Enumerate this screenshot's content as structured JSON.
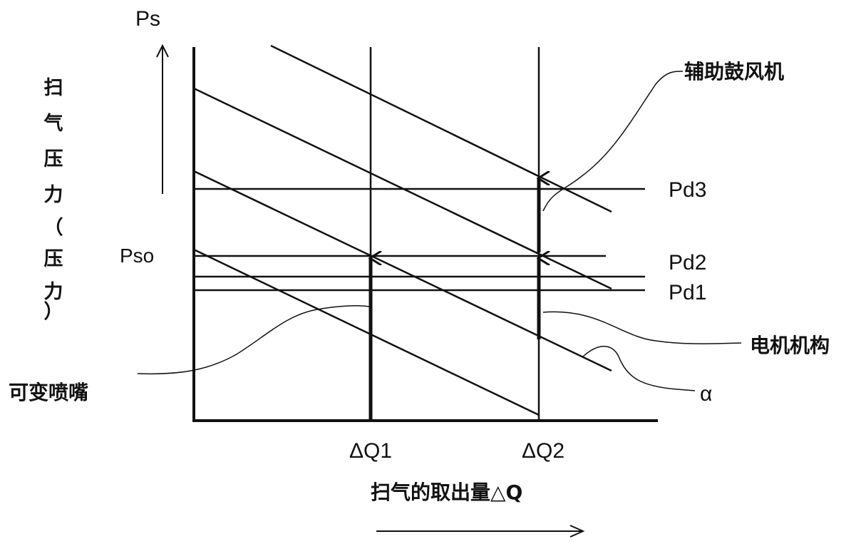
{
  "y_axis": {
    "symbol": "Ps",
    "label_chars": [
      "扫",
      "气",
      "压",
      "力",
      "（",
      "压",
      "力",
      "）"
    ],
    "reference": "Pso"
  },
  "x_axis": {
    "label": "扫气的取出量△Q",
    "ticks": [
      "ΔQ1",
      "ΔQ2"
    ]
  },
  "levels": [
    "Pd3",
    "Pd2",
    "Pd1"
  ],
  "callouts": {
    "auxiliary_blower": "辅助鼓风机",
    "motor_mechanism": "电机机构",
    "variable_nozzle": "可变喷嘴",
    "alpha": "α"
  },
  "colors": {
    "ink": "#111111",
    "background": "#ffffff"
  }
}
